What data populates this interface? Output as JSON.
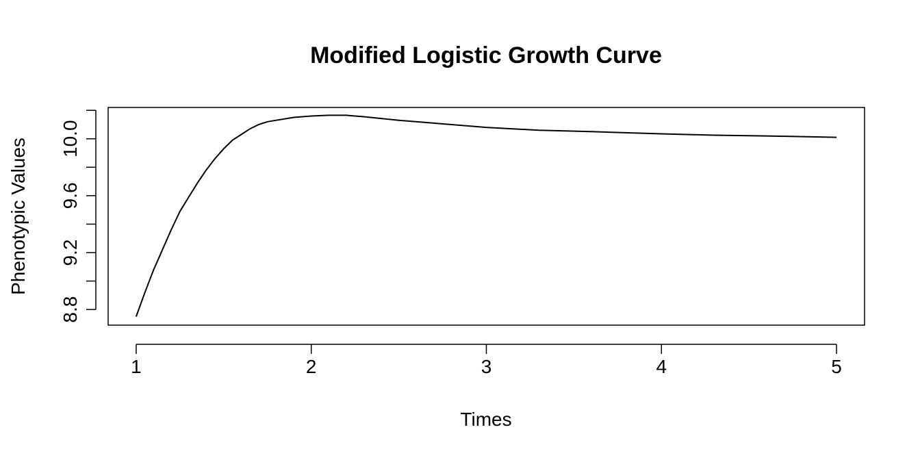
{
  "chart_data": {
    "type": "line",
    "title": "Modified Logistic Growth Curve",
    "xlabel": "Times",
    "ylabel": "Phenotypic Values",
    "xlim": [
      0.84,
      5.16
    ],
    "ylim": [
      8.69,
      10.22
    ],
    "xticks": [
      1,
      2,
      3,
      4,
      5
    ],
    "xtick_labels": [
      "1",
      "2",
      "3",
      "4",
      "5"
    ],
    "yticks": [
      8.8,
      9.0,
      9.2,
      9.4,
      9.6,
      9.8,
      10.0,
      10.2
    ],
    "ytick_labels": [
      "8.8",
      "",
      "9.2",
      "",
      "9.6",
      "",
      "10.0",
      ""
    ],
    "grid": false,
    "legend": "none",
    "series": [
      {
        "color": "#000000",
        "x": [
          1.0,
          1.05,
          1.1,
          1.15,
          1.2,
          1.25,
          1.3,
          1.35,
          1.4,
          1.45,
          1.5,
          1.55,
          1.6,
          1.65,
          1.7,
          1.75,
          1.8,
          1.85,
          1.9,
          2.0,
          2.1,
          2.2,
          2.3,
          2.5,
          2.7,
          3.0,
          3.3,
          3.6,
          4.0,
          4.3,
          4.6,
          5.0
        ],
        "y": [
          8.75,
          8.92,
          9.08,
          9.22,
          9.36,
          9.49,
          9.59,
          9.69,
          9.78,
          9.86,
          9.93,
          9.99,
          10.03,
          10.07,
          10.1,
          10.12,
          10.13,
          10.14,
          10.15,
          10.16,
          10.165,
          10.165,
          10.155,
          10.13,
          10.11,
          10.08,
          10.06,
          10.05,
          10.035,
          10.025,
          10.02,
          10.01
        ]
      }
    ]
  }
}
